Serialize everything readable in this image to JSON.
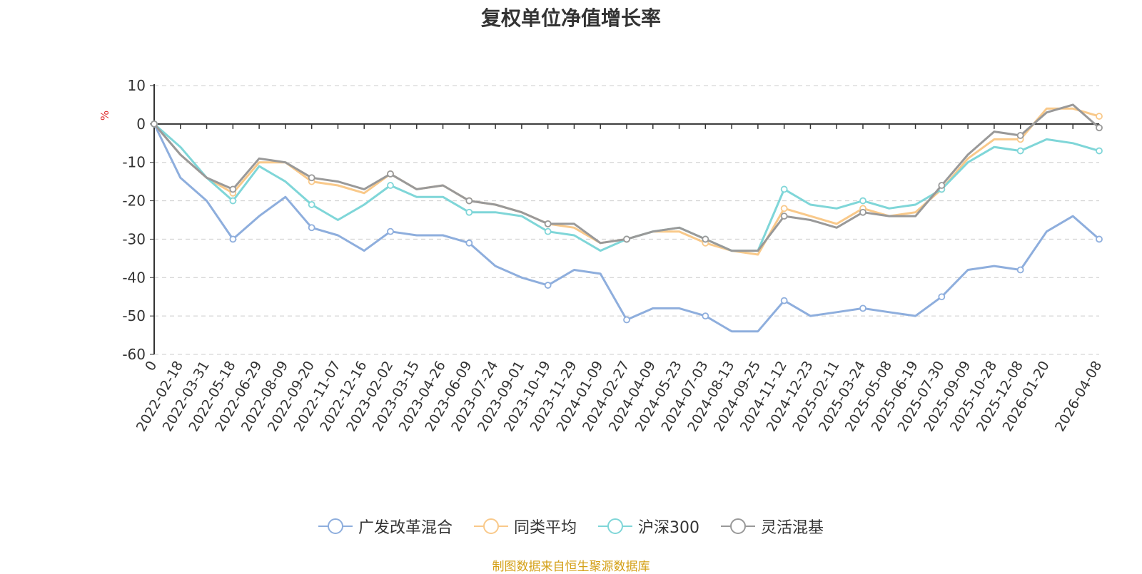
{
  "chart_data": {
    "type": "line",
    "title": "复权单位净值增长率",
    "ylabel": "%",
    "ylim": [
      -60,
      10
    ],
    "yticks": [
      10,
      0,
      -10,
      -20,
      -30,
      -40,
      -50,
      -60
    ],
    "grid": true,
    "legend_position": "bottom-center",
    "x": [
      "0",
      "2022-02-18",
      "2022-03-31",
      "2022-05-18",
      "2022-06-29",
      "2022-08-09",
      "2022-09-20",
      "2022-11-07",
      "2022-12-16",
      "2023-02-02",
      "2023-03-15",
      "2023-04-26",
      "2023-06-09",
      "2023-07-24",
      "2023-09-01",
      "2023-10-19",
      "2023-11-29",
      "2024-01-09",
      "2024-02-27",
      "2024-04-09",
      "2024-05-23",
      "2024-07-03",
      "2024-08-13",
      "2024-09-25",
      "2024-11-12",
      "2024-12-23",
      "2025-02-11",
      "2025-03-24",
      "2025-05-08",
      "2025-06-19",
      "2025-07-30",
      "2025-09-09",
      "2025-10-28",
      "2025-12-08",
      "2026-01-20",
      "",
      "2026-04-08"
    ],
    "series": [
      {
        "name": "广发改革混合",
        "color": "#8eaedd",
        "values": [
          0,
          -14,
          -20,
          -30,
          -24,
          -19,
          -27,
          -29,
          -33,
          -28,
          -29,
          -29,
          -31,
          -37,
          -40,
          -42,
          -38,
          -39,
          -51,
          -48,
          -48,
          -50,
          -54,
          -54,
          -46,
          -50,
          -49,
          -48,
          -49,
          -50,
          -45,
          -38,
          -37,
          -38,
          -28,
          -24,
          -30
        ]
      },
      {
        "name": "同类平均",
        "color": "#f9c98a",
        "values": [
          0,
          -8,
          -14,
          -18,
          -10,
          -10,
          -15,
          -16,
          -18,
          -13,
          -17,
          -16,
          -20,
          -21,
          -23,
          -26,
          -27,
          -31,
          -30,
          -28,
          -28,
          -31,
          -33,
          -34,
          -22,
          -24,
          -26,
          -22,
          -24,
          -23,
          -17,
          -9,
          -4,
          -4,
          4,
          4,
          2
        ]
      },
      {
        "name": "沪深300",
        "color": "#7fd6d8",
        "values": [
          0,
          -6,
          -14,
          -20,
          -11,
          -15,
          -21,
          -25,
          -21,
          -16,
          -19,
          -19,
          -23,
          -23,
          -24,
          -28,
          -29,
          -33,
          -30,
          -28,
          -27,
          -30,
          -33,
          -33,
          -17,
          -21,
          -22,
          -20,
          -22,
          -21,
          -17,
          -10,
          -6,
          -7,
          -4,
          -5,
          -7
        ]
      },
      {
        "name": "灵活混基",
        "color": "#999999",
        "values": [
          0,
          -8,
          -14,
          -17,
          -9,
          -10,
          -14,
          -15,
          -17,
          -13,
          -17,
          -16,
          -20,
          -21,
          -23,
          -26,
          -26,
          -31,
          -30,
          -28,
          -27,
          -30,
          -33,
          -33,
          -24,
          -25,
          -27,
          -23,
          -24,
          -24,
          -16,
          -8,
          -2,
          -3,
          3,
          5,
          -1
        ]
      }
    ]
  },
  "legend": {
    "items": [
      "广发改革混合",
      "同类平均",
      "沪深300",
      "灵活混基"
    ]
  },
  "source_note": "制图数据来自恒生聚源数据库"
}
